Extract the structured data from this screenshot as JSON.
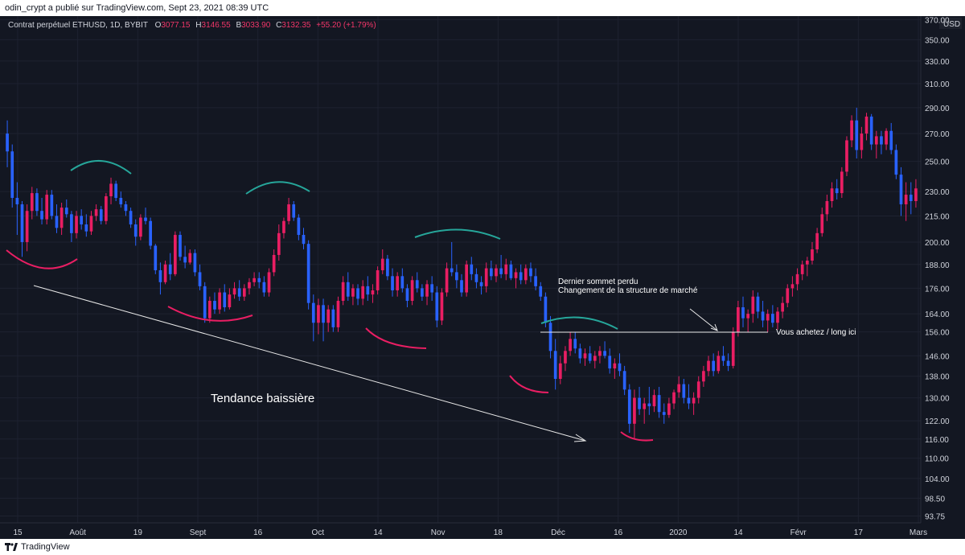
{
  "header": {
    "text": "odin_crypt a  publié sur TradingView.com, Sept 23, 2021 08:39 UTC"
  },
  "footer": {
    "brand": "TradingView",
    "logo_icon": "tradingview-logo-icon"
  },
  "legend": {
    "symbol": "Contrat perpétuel ETHUSD, 1D, BYBIT",
    "o_label": "O",
    "o_value": "3077.15",
    "h_label": "H",
    "h_value": "3146.55",
    "b_label": "B",
    "b_value": "3033.90",
    "c_label": "C",
    "c_value": "3132.35",
    "change": "+55.20 (+1.79%)"
  },
  "colors": {
    "up": "#e91e63",
    "down": "#2962ff",
    "green_arc": "#26a69a",
    "red_arc": "#e91e63",
    "background": "#131722"
  },
  "annotations": {
    "trend_label": "Tendance baissière",
    "lost_peak": "Dernier sommet perdu",
    "structure_change": "Changement de la structure de marché",
    "buy_here": "Vous achetez / long ici"
  },
  "chart_data": {
    "type": "candlestick",
    "y_axis": {
      "currency": "USD",
      "scale": "log",
      "ticks": [
        "370.00",
        "350.00",
        "330.00",
        "310.00",
        "290.00",
        "270.00",
        "250.00",
        "230.00",
        "215.00",
        "200.00",
        "188.00",
        "176.00",
        "164.00",
        "156.00",
        "146.00",
        "138.00",
        "130.00",
        "122.00",
        "116.00",
        "110.00",
        "104.00",
        "98.50",
        "93.75"
      ],
      "range": [
        92,
        372
      ]
    },
    "x_axis": {
      "ticks": [
        "15",
        "Août",
        "19",
        "Sept",
        "16",
        "Oct",
        "14",
        "Nov",
        "18",
        "Déc",
        "16",
        "2020",
        "14",
        "Févr",
        "17",
        "Mars"
      ]
    },
    "grid": true,
    "price_levels": {
      "buy_level": 155.5
    },
    "ohlc": [
      [
        270,
        280,
        246,
        257
      ],
      [
        257,
        262,
        220,
        226
      ],
      [
        226,
        236,
        204,
        222
      ],
      [
        222,
        224,
        192,
        200
      ],
      [
        200,
        222,
        195,
        218
      ],
      [
        218,
        233,
        213,
        229
      ],
      [
        229,
        232,
        215,
        218
      ],
      [
        218,
        226,
        210,
        213
      ],
      [
        213,
        231,
        210,
        228
      ],
      [
        228,
        231,
        213,
        215
      ],
      [
        215,
        222,
        205,
        208
      ],
      [
        208,
        223,
        204,
        220
      ],
      [
        220,
        225,
        214,
        216
      ],
      [
        216,
        218,
        200,
        205
      ],
      [
        205,
        218,
        202,
        215
      ],
      [
        215,
        219,
        207,
        210
      ],
      [
        210,
        216,
        203,
        206
      ],
      [
        206,
        218,
        204,
        215
      ],
      [
        215,
        222,
        212,
        219
      ],
      [
        219,
        221,
        210,
        212
      ],
      [
        212,
        229,
        210,
        227
      ],
      [
        227,
        239,
        222,
        235
      ],
      [
        235,
        237,
        224,
        226
      ],
      [
        226,
        230,
        220,
        222
      ],
      [
        222,
        224,
        215,
        218
      ],
      [
        218,
        220,
        208,
        210
      ],
      [
        210,
        213,
        198,
        203
      ],
      [
        203,
        216,
        201,
        214
      ],
      [
        214,
        220,
        210,
        212
      ],
      [
        212,
        214,
        196,
        198
      ],
      [
        198,
        199,
        183,
        185
      ],
      [
        185,
        189,
        173,
        179
      ],
      [
        179,
        190,
        178,
        188
      ],
      [
        188,
        194,
        180,
        183
      ],
      [
        183,
        206,
        182,
        204
      ],
      [
        204,
        206,
        190,
        192
      ],
      [
        192,
        198,
        186,
        189
      ],
      [
        189,
        196,
        188,
        194
      ],
      [
        194,
        196,
        182,
        184
      ],
      [
        184,
        188,
        175,
        177
      ],
      [
        177,
        179,
        160,
        162
      ],
      [
        162,
        172,
        160,
        170
      ],
      [
        170,
        174,
        164,
        166
      ],
      [
        166,
        176,
        164,
        174
      ],
      [
        174,
        178,
        165,
        167
      ],
      [
        167,
        176,
        166,
        173
      ],
      [
        173,
        179,
        171,
        176
      ],
      [
        176,
        180,
        170,
        172
      ],
      [
        172,
        178,
        170,
        176
      ],
      [
        176,
        181,
        173,
        179
      ],
      [
        179,
        184,
        177,
        181
      ],
      [
        181,
        184,
        176,
        179
      ],
      [
        179,
        182,
        172,
        174
      ],
      [
        174,
        186,
        172,
        184
      ],
      [
        184,
        196,
        182,
        193
      ],
      [
        193,
        210,
        190,
        205
      ],
      [
        205,
        214,
        202,
        212
      ],
      [
        212,
        226,
        210,
        222
      ],
      [
        222,
        224,
        212,
        214
      ],
      [
        214,
        216,
        201,
        204
      ],
      [
        204,
        208,
        196,
        199
      ],
      [
        199,
        201,
        166,
        169
      ],
      [
        169,
        173,
        152,
        160
      ],
      [
        160,
        171,
        155,
        168
      ],
      [
        168,
        171,
        152,
        160
      ],
      [
        160,
        168,
        156,
        166
      ],
      [
        166,
        168,
        156,
        158
      ],
      [
        158,
        172,
        156,
        170
      ],
      [
        170,
        182,
        168,
        179
      ],
      [
        179,
        184,
        170,
        172
      ],
      [
        172,
        178,
        168,
        176
      ],
      [
        176,
        178,
        168,
        171
      ],
      [
        171,
        180,
        168,
        177
      ],
      [
        177,
        182,
        170,
        173
      ],
      [
        173,
        178,
        169,
        175
      ],
      [
        175,
        187,
        173,
        185
      ],
      [
        185,
        196,
        183,
        191
      ],
      [
        191,
        193,
        180,
        182
      ],
      [
        182,
        186,
        172,
        175
      ],
      [
        175,
        184,
        172,
        182
      ],
      [
        182,
        186,
        174,
        176
      ],
      [
        176,
        178,
        167,
        170
      ],
      [
        170,
        182,
        168,
        180
      ],
      [
        180,
        184,
        174,
        176
      ],
      [
        176,
        178,
        170,
        172
      ],
      [
        172,
        180,
        168,
        178
      ],
      [
        178,
        182,
        170,
        174
      ],
      [
        174,
        177,
        158,
        161
      ],
      [
        161,
        176,
        159,
        174
      ],
      [
        174,
        189,
        172,
        186
      ],
      [
        186,
        200,
        182,
        184
      ],
      [
        184,
        188,
        176,
        180
      ],
      [
        180,
        183,
        172,
        174
      ],
      [
        174,
        190,
        172,
        188
      ],
      [
        188,
        192,
        180,
        183
      ],
      [
        183,
        186,
        176,
        179
      ],
      [
        179,
        182,
        173,
        177
      ],
      [
        177,
        189,
        174,
        186
      ],
      [
        186,
        190,
        180,
        182
      ],
      [
        182,
        188,
        179,
        186
      ],
      [
        186,
        193,
        181,
        183
      ],
      [
        183,
        191,
        180,
        188
      ],
      [
        188,
        190,
        180,
        181
      ],
      [
        181,
        186,
        176,
        184
      ],
      [
        184,
        188,
        178,
        180
      ],
      [
        180,
        188,
        178,
        186
      ],
      [
        186,
        189,
        179,
        182
      ],
      [
        182,
        186,
        175,
        177
      ],
      [
        177,
        179,
        170,
        172
      ],
      [
        172,
        174,
        158,
        160
      ],
      [
        160,
        163,
        145,
        148
      ],
      [
        148,
        153,
        133,
        137
      ],
      [
        137,
        146,
        135,
        143
      ],
      [
        143,
        150,
        140,
        148
      ],
      [
        148,
        156,
        146,
        153
      ],
      [
        153,
        156,
        147,
        149
      ],
      [
        149,
        151,
        143,
        145
      ],
      [
        145,
        149,
        142,
        147
      ],
      [
        147,
        150,
        143,
        144
      ],
      [
        144,
        148,
        141,
        146
      ],
      [
        146,
        150,
        143,
        148
      ],
      [
        148,
        152,
        145,
        146
      ],
      [
        146,
        149,
        139,
        141
      ],
      [
        141,
        145,
        137,
        143
      ],
      [
        143,
        147,
        138,
        140
      ],
      [
        140,
        142,
        131,
        133
      ],
      [
        133,
        135,
        118,
        121
      ],
      [
        121,
        133,
        116,
        130
      ],
      [
        130,
        134,
        124,
        126
      ],
      [
        126,
        130,
        121,
        128
      ],
      [
        128,
        134,
        124,
        127
      ],
      [
        127,
        133,
        125,
        131
      ],
      [
        131,
        134,
        123,
        125
      ],
      [
        125,
        128,
        121,
        124
      ],
      [
        124,
        130,
        123,
        128
      ],
      [
        128,
        133,
        126,
        132
      ],
      [
        132,
        138,
        130,
        135
      ],
      [
        135,
        137,
        128,
        130
      ],
      [
        130,
        135,
        126,
        128
      ],
      [
        128,
        132,
        124,
        130
      ],
      [
        130,
        138,
        128,
        136
      ],
      [
        136,
        142,
        134,
        140
      ],
      [
        140,
        146,
        138,
        144
      ],
      [
        144,
        147,
        138,
        140
      ],
      [
        140,
        148,
        139,
        146
      ],
      [
        146,
        150,
        142,
        144
      ],
      [
        144,
        147,
        140,
        142
      ],
      [
        142,
        158,
        141,
        156
      ],
      [
        156,
        170,
        154,
        167
      ],
      [
        167,
        172,
        158,
        162
      ],
      [
        162,
        166,
        156,
        164
      ],
      [
        164,
        175,
        160,
        172
      ],
      [
        172,
        174,
        162,
        165
      ],
      [
        165,
        170,
        158,
        161
      ],
      [
        161,
        166,
        156,
        164
      ],
      [
        164,
        168,
        158,
        160
      ],
      [
        160,
        167,
        157,
        165
      ],
      [
        165,
        172,
        162,
        169
      ],
      [
        169,
        178,
        167,
        176
      ],
      [
        176,
        182,
        172,
        178
      ],
      [
        178,
        186,
        175,
        183
      ],
      [
        183,
        190,
        180,
        188
      ],
      [
        188,
        192,
        182,
        190
      ],
      [
        190,
        200,
        188,
        196
      ],
      [
        196,
        208,
        194,
        205
      ],
      [
        205,
        220,
        203,
        216
      ],
      [
        216,
        228,
        212,
        224
      ],
      [
        224,
        236,
        220,
        232
      ],
      [
        232,
        238,
        225,
        229
      ],
      [
        229,
        246,
        226,
        243
      ],
      [
        243,
        268,
        240,
        265
      ],
      [
        265,
        284,
        260,
        280
      ],
      [
        280,
        290,
        252,
        258
      ],
      [
        258,
        275,
        252,
        270
      ],
      [
        270,
        286,
        265,
        283
      ],
      [
        283,
        285,
        258,
        262
      ],
      [
        262,
        272,
        252,
        268
      ],
      [
        268,
        272,
        255,
        262
      ],
      [
        262,
        274,
        258,
        272
      ],
      [
        272,
        278,
        255,
        258
      ],
      [
        258,
        262,
        238,
        241
      ],
      [
        241,
        246,
        215,
        222
      ],
      [
        222,
        236,
        212,
        228
      ],
      [
        228,
        236,
        216,
        224
      ],
      [
        224,
        238,
        220,
        232
      ]
    ]
  }
}
